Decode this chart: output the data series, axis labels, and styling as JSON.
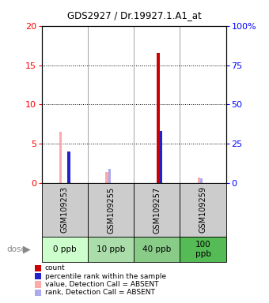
{
  "title": "GDS2927 / Dr.19927.1.A1_at",
  "samples": [
    "GSM109253",
    "GSM109255",
    "GSM109257",
    "GSM109259"
  ],
  "doses": [
    "0 ppb",
    "10 ppb",
    "40 ppb",
    "100\nppb"
  ],
  "dose_colors": [
    "#ccffcc",
    "#aaddaa",
    "#88cc88",
    "#55bb55"
  ],
  "left_ylim": [
    0,
    20
  ],
  "right_ylim": [
    0,
    100
  ],
  "left_yticks": [
    0,
    5,
    10,
    15,
    20
  ],
  "right_yticks": [
    0,
    25,
    50,
    75,
    100
  ],
  "count_values": [
    0,
    0,
    16.6,
    0
  ],
  "rank_values": [
    4.0,
    0,
    6.6,
    0
  ],
  "value_absent": [
    6.5,
    1.4,
    0,
    0.7
  ],
  "rank_absent": [
    0,
    1.8,
    0,
    0.6
  ],
  "count_color": "#cc0000",
  "rank_color": "#2222cc",
  "value_absent_color": "#ffaaaa",
  "rank_absent_color": "#aaaaee",
  "bar_width": 0.06,
  "gray_bg": "#cccccc",
  "sample_label_fontsize": 7,
  "dose_fontsize": 7.5
}
